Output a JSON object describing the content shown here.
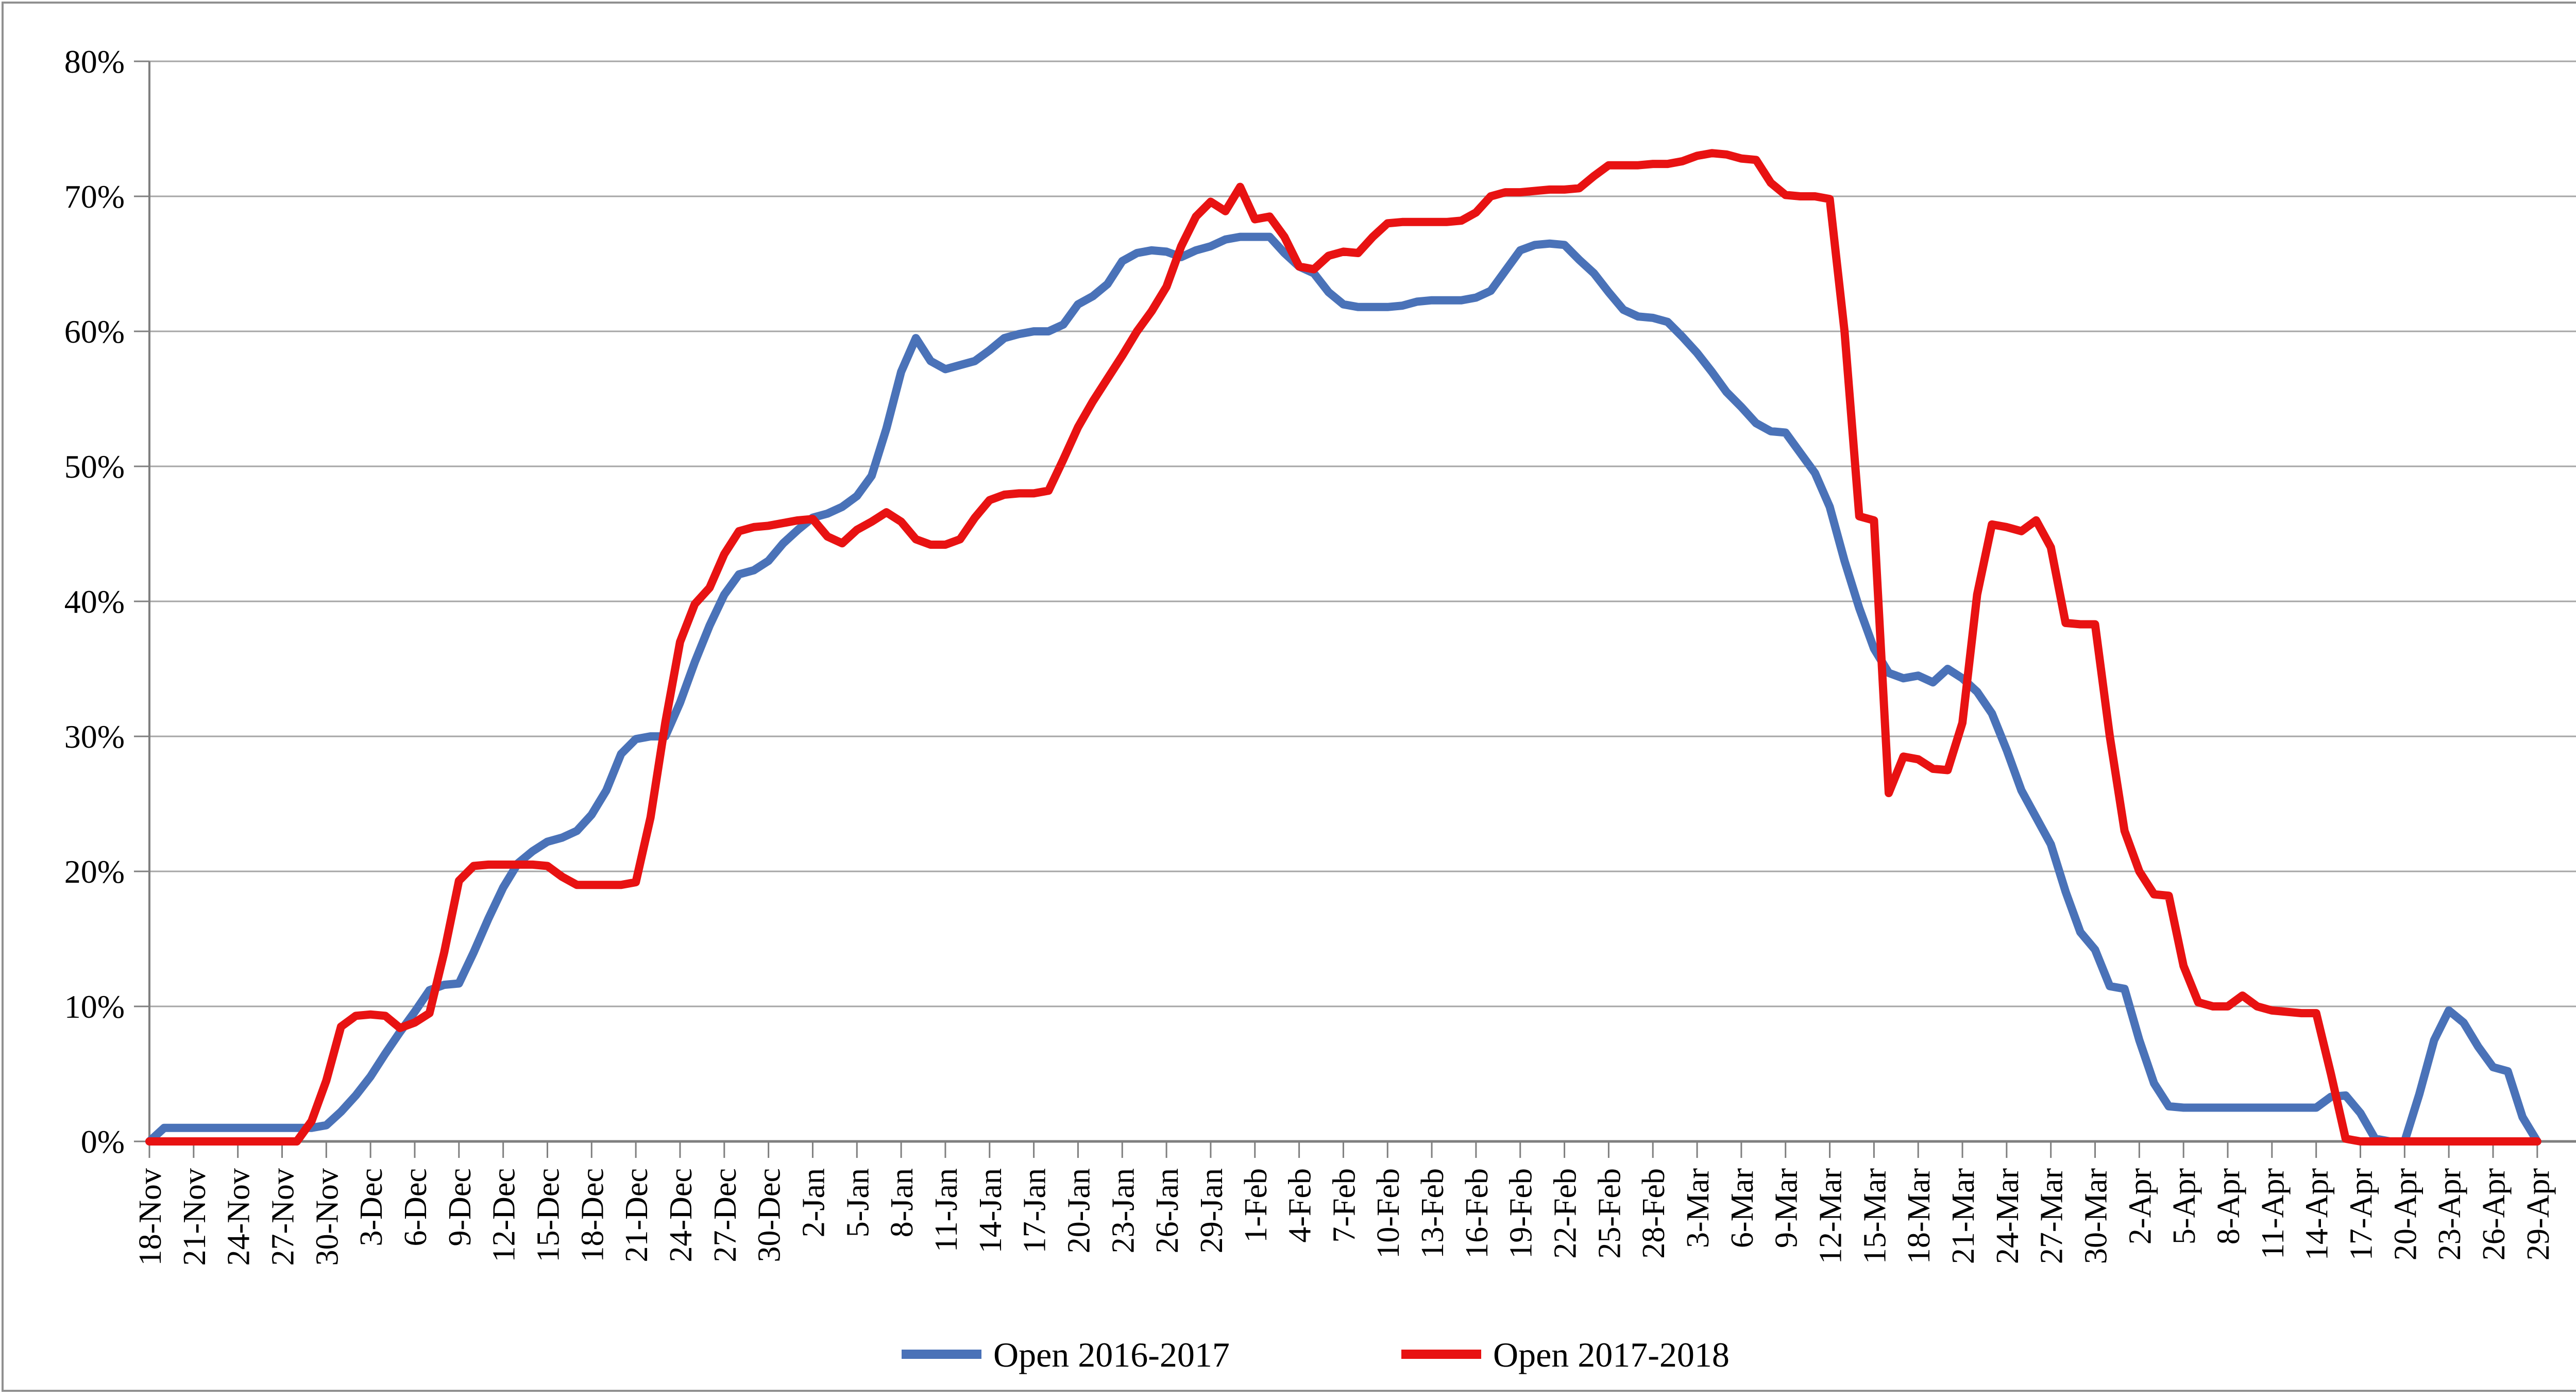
{
  "chart_data": {
    "type": "line",
    "title": "",
    "xlabel": "",
    "ylabel": "",
    "ylim": [
      0,
      80
    ],
    "grid": "horizontal",
    "legend_position": "bottom-center",
    "y_tick_labels": [
      "0%",
      "10%",
      "20%",
      "30%",
      "40%",
      "50%",
      "60%",
      "70%",
      "80%"
    ],
    "x_tick_every": 3,
    "x_tick_labels": [
      "18-Nov",
      "21-Nov",
      "24-Nov",
      "27-Nov",
      "30-Nov",
      "3-Dec",
      "6-Dec",
      "9-Dec",
      "12-Dec",
      "15-Dec",
      "18-Dec",
      "21-Dec",
      "24-Dec",
      "27-Dec",
      "30-Dec",
      "2-Jan",
      "5-Jan",
      "8-Jan",
      "11-Jan",
      "14-Jan",
      "17-Jan",
      "20-Jan",
      "23-Jan",
      "26-Jan",
      "29-Jan",
      "1-Feb",
      "4-Feb",
      "7-Feb",
      "10-Feb",
      "13-Feb",
      "16-Feb",
      "19-Feb",
      "22-Feb",
      "25-Feb",
      "28-Feb",
      "3-Mar",
      "6-Mar",
      "9-Mar",
      "12-Mar",
      "15-Mar",
      "18-Mar",
      "21-Mar",
      "24-Mar",
      "27-Mar",
      "30-Mar",
      "2-Apr",
      "5-Apr",
      "8-Apr",
      "11-Apr",
      "14-Apr",
      "17-Apr",
      "20-Apr",
      "23-Apr",
      "26-Apr",
      "29-Apr"
    ],
    "series": [
      {
        "name": "Open 2016-2017",
        "color": "#4A72B8",
        "values": [
          0,
          1,
          1,
          1,
          1,
          1,
          1,
          1,
          1,
          1,
          1,
          1,
          1.2,
          2.2,
          3.4,
          4.8,
          6.5,
          8.1,
          9.6,
          11.2,
          11.6,
          11.7,
          14,
          16.5,
          18.8,
          20.6,
          21.5,
          22.2,
          22.5,
          23,
          24.2,
          26,
          28.7,
          29.8,
          30,
          30,
          32.5,
          35.5,
          38.2,
          40.5,
          42,
          42.3,
          43,
          44.3,
          45.3,
          46.2,
          46.5,
          47,
          47.8,
          49.3,
          52.8,
          57,
          59.5,
          57.8,
          57.2,
          57.5,
          57.8,
          58.6,
          59.5,
          59.8,
          60,
          60,
          60.5,
          62,
          62.6,
          63.5,
          65.2,
          65.8,
          66,
          65.9,
          65.5,
          66,
          66.3,
          66.8,
          67,
          67,
          67,
          65.8,
          64.8,
          64.3,
          62.9,
          62,
          61.8,
          61.8,
          61.8,
          61.9,
          62.2,
          62.3,
          62.3,
          62.3,
          62.5,
          63,
          64.5,
          66,
          66.4,
          66.5,
          66.4,
          65.3,
          64.3,
          62.9,
          61.6,
          61.1,
          61,
          60.7,
          59.6,
          58.4,
          57,
          55.5,
          54.4,
          53.2,
          52.6,
          52.5,
          51,
          49.5,
          47,
          43,
          39.5,
          36.5,
          34.7,
          34.3,
          34.5,
          34,
          35,
          34.3,
          33.3,
          31.7,
          29,
          26,
          24,
          22,
          18.5,
          15.5,
          14.2,
          11.5,
          11.3,
          7.5,
          4.3,
          2.6,
          2.5,
          2.5,
          2.5,
          2.5,
          2.5,
          2.5,
          2.5,
          2.5,
          2.5,
          2.5,
          3.3,
          3.4,
          2.1,
          0.2,
          0,
          0,
          3.5,
          7.5,
          9.7,
          8.8,
          7,
          5.5,
          5.2,
          1.8,
          0
        ]
      },
      {
        "name": "Open 2017-2018",
        "color": "#E81212",
        "values": [
          0,
          0,
          0,
          0,
          0,
          0,
          0,
          0,
          0,
          0,
          0,
          1.5,
          4.5,
          8.5,
          9.3,
          9.4,
          9.3,
          8.4,
          8.8,
          9.5,
          14,
          19.3,
          20.4,
          20.5,
          20.5,
          20.5,
          20.5,
          20.4,
          19.6,
          19,
          19,
          19,
          19,
          19.2,
          24,
          31,
          37,
          39.8,
          41,
          43.5,
          45.2,
          45.5,
          45.6,
          45.8,
          46,
          46.1,
          44.8,
          44.3,
          45.3,
          45.9,
          46.6,
          45.9,
          44.6,
          44.2,
          44.2,
          44.6,
          46.2,
          47.5,
          47.9,
          48,
          48,
          48.2,
          50.5,
          52.9,
          54.8,
          56.5,
          58.2,
          60,
          61.5,
          63.3,
          66.3,
          68.5,
          69.6,
          68.9,
          70.7,
          68.3,
          68.5,
          67,
          64.8,
          64.6,
          65.6,
          65.9,
          65.8,
          67,
          68,
          68.1,
          68.1,
          68.1,
          68.1,
          68.2,
          68.8,
          70,
          70.3,
          70.3,
          70.4,
          70.5,
          70.5,
          70.6,
          71.5,
          72.3,
          72.3,
          72.3,
          72.4,
          72.4,
          72.6,
          73,
          73.2,
          73.1,
          72.8,
          72.7,
          71,
          70.1,
          70,
          70,
          69.8,
          60,
          46.3,
          46,
          25.8,
          28.5,
          28.3,
          27.6,
          27.5,
          31,
          40.5,
          45.7,
          45.5,
          45.2,
          46,
          44,
          38.4,
          38.3,
          38.3,
          30,
          23,
          20,
          18.3,
          18.2,
          13,
          10.3,
          10,
          10,
          10.8,
          10,
          9.7,
          9.6,
          9.5,
          9.5,
          5,
          0.2,
          0,
          0,
          0,
          0,
          0,
          0,
          0,
          0,
          0,
          0,
          0,
          0,
          0
        ]
      }
    ],
    "colors": {
      "gridline": "#A6A6A6",
      "axis": "#7F7F7F",
      "border": "#909090",
      "text": "#000000",
      "background": "#FFFFFF"
    }
  },
  "legend": {
    "items": [
      {
        "label": "Open 2016-2017"
      },
      {
        "label": "Open 2017-2018"
      }
    ]
  }
}
